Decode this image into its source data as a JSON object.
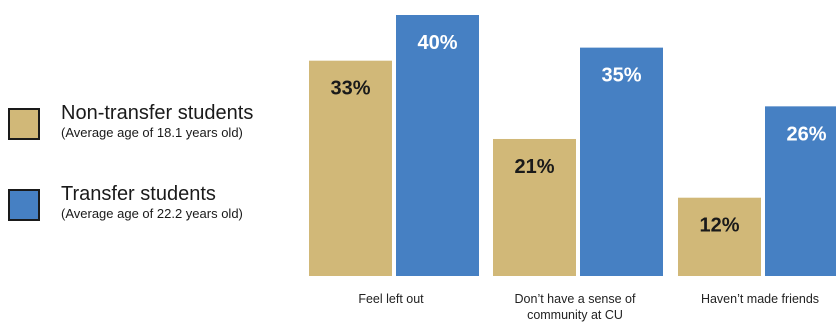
{
  "colors": {
    "non_transfer": "#D1B878",
    "transfer": "#4680C3",
    "label_dark": "#1a1a1a",
    "label_light": "#ffffff"
  },
  "legend": [
    {
      "name": "Non-transfer students",
      "note": "(Average age of 18.1 years old)",
      "color": "#D1B878"
    },
    {
      "name": "Transfer students",
      "note": "(Average age of 22.2 years old)",
      "color": "#4680C3"
    }
  ],
  "chart_data": {
    "type": "bar",
    "title": "",
    "xlabel": "",
    "ylabel": "",
    "ylim": [
      0,
      40
    ],
    "grid": false,
    "legend_position": "left",
    "categories": [
      [
        "Feel left out"
      ],
      [
        "Don’t have a sense of",
        "community at CU"
      ],
      [
        "Haven’t made friends"
      ]
    ],
    "series": [
      {
        "name": "Non-transfer students",
        "values": [
          33,
          21,
          12
        ],
        "labels": [
          "33%",
          "21%",
          "12%"
        ],
        "color": "#D1B878",
        "label_color": "#1a1a1a"
      },
      {
        "name": "Transfer students",
        "values": [
          40,
          35,
          26
        ],
        "labels": [
          "40%",
          "35%",
          "26%"
        ],
        "color": "#4680C3",
        "label_color": "#ffffff"
      }
    ]
  }
}
